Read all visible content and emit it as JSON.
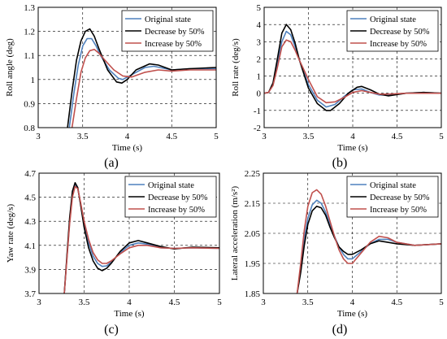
{
  "colors": {
    "original": "#4f81bd",
    "decrease": "#000000",
    "increase": "#c0504d",
    "grid": "#000000",
    "axis": "#000000"
  },
  "legend_position": "top-right",
  "chart_data": [
    {
      "type": "line",
      "panel_label": "(a)",
      "xlabel": "Time (s)",
      "ylabel": "Roll angle (deg)",
      "xlim": [
        3,
        5
      ],
      "ylim": [
        0.8,
        1.3
      ],
      "xticks": [
        "3",
        "3.5",
        "4",
        "4.5",
        "5"
      ],
      "yticks": [
        "0.8",
        "0.9",
        "1",
        "1.1",
        "1.2",
        "1.3"
      ],
      "grid": true,
      "series": [
        {
          "name": "Original state",
          "color": "#4f81bd",
          "x": [
            3.35,
            3.4,
            3.45,
            3.5,
            3.55,
            3.6,
            3.65,
            3.7,
            3.8,
            3.9,
            3.95,
            4.05,
            4.2,
            4.3,
            4.5,
            4.7,
            5.0
          ],
          "y": [
            0.8,
            0.94,
            1.06,
            1.14,
            1.17,
            1.17,
            1.14,
            1.1,
            1.04,
            1.005,
            1.0,
            1.02,
            1.05,
            1.055,
            1.04,
            1.045,
            1.045
          ]
        },
        {
          "name": "Decrease by 50%",
          "color": "#000000",
          "x": [
            3.33,
            3.38,
            3.43,
            3.48,
            3.53,
            3.58,
            3.63,
            3.68,
            3.78,
            3.88,
            3.94,
            4.0,
            4.1,
            4.25,
            4.35,
            4.5,
            4.7,
            5.0
          ],
          "y": [
            0.8,
            0.95,
            1.08,
            1.16,
            1.2,
            1.21,
            1.18,
            1.13,
            1.04,
            0.99,
            0.985,
            1.0,
            1.04,
            1.065,
            1.06,
            1.04,
            1.045,
            1.05
          ]
        },
        {
          "name": "Increase by 50%",
          "color": "#c0504d",
          "x": [
            3.38,
            3.43,
            3.48,
            3.53,
            3.58,
            3.63,
            3.68,
            3.75,
            3.85,
            3.95,
            4.05,
            4.2,
            4.35,
            4.5,
            4.7,
            5.0
          ],
          "y": [
            0.8,
            0.92,
            1.03,
            1.09,
            1.12,
            1.125,
            1.11,
            1.08,
            1.04,
            1.015,
            1.01,
            1.03,
            1.04,
            1.035,
            1.04,
            1.04
          ]
        }
      ]
    },
    {
      "type": "line",
      "panel_label": "(b)",
      "xlabel": "Time (s)",
      "ylabel": "Roll rate (deg/s)",
      "xlim": [
        3,
        5
      ],
      "ylim": [
        -2,
        5
      ],
      "xticks": [
        "3",
        "3.5",
        "4",
        "4.5",
        "5"
      ],
      "yticks": [
        "-2",
        "-1",
        "0",
        "1",
        "2",
        "3",
        "4",
        "5"
      ],
      "grid": true,
      "series": [
        {
          "name": "Original state",
          "color": "#4f81bd",
          "x": [
            3.0,
            3.05,
            3.1,
            3.15,
            3.2,
            3.25,
            3.3,
            3.35,
            3.4,
            3.5,
            3.6,
            3.7,
            3.8,
            3.9,
            4.0,
            4.1,
            4.2,
            4.3,
            4.4,
            4.6,
            4.8,
            5.0
          ],
          "y": [
            0,
            0.05,
            0.5,
            1.7,
            3.0,
            3.6,
            3.4,
            2.7,
            1.9,
            0.5,
            -0.4,
            -0.8,
            -0.65,
            -0.2,
            0.2,
            0.25,
            0.05,
            -0.1,
            -0.1,
            0,
            0.05,
            0
          ]
        },
        {
          "name": "Decrease by 50%",
          "color": "#000000",
          "x": [
            3.0,
            3.05,
            3.1,
            3.15,
            3.2,
            3.25,
            3.3,
            3.35,
            3.4,
            3.5,
            3.6,
            3.7,
            3.75,
            3.85,
            3.95,
            4.05,
            4.1,
            4.2,
            4.3,
            4.4,
            4.6,
            4.8,
            5.0
          ],
          "y": [
            0,
            0.05,
            0.6,
            2.0,
            3.5,
            4.0,
            3.7,
            2.9,
            1.9,
            0.3,
            -0.6,
            -1.0,
            -1.0,
            -0.6,
            0,
            0.35,
            0.4,
            0.2,
            -0.05,
            -0.15,
            0,
            0.05,
            0
          ]
        },
        {
          "name": "Increase by 50%",
          "color": "#c0504d",
          "x": [
            3.0,
            3.05,
            3.1,
            3.15,
            3.2,
            3.25,
            3.3,
            3.35,
            3.4,
            3.5,
            3.6,
            3.7,
            3.8,
            3.9,
            4.0,
            4.1,
            4.2,
            4.3,
            4.4,
            4.6,
            4.8,
            5.0
          ],
          "y": [
            0,
            0.05,
            0.45,
            1.5,
            2.7,
            3.1,
            3.0,
            2.5,
            1.9,
            0.8,
            -0.2,
            -0.55,
            -0.5,
            -0.25,
            0.05,
            0.15,
            0.05,
            -0.05,
            -0.05,
            0,
            0,
            0
          ]
        }
      ]
    },
    {
      "type": "line",
      "panel_label": "(c)",
      "xlabel": "Time (s)",
      "ylabel": "Yaw rate (deg/s)",
      "xlim": [
        3,
        5
      ],
      "ylim": [
        3.7,
        4.7
      ],
      "xticks": [
        "3",
        "3.5",
        "4",
        "4.5",
        "5"
      ],
      "yticks": [
        "3.7",
        "3.9",
        "4.1",
        "4.3",
        "4.5",
        "4.7"
      ],
      "grid": true,
      "series": [
        {
          "name": "Original state",
          "color": "#4f81bd",
          "x": [
            3.28,
            3.31,
            3.34,
            3.37,
            3.4,
            3.43,
            3.46,
            3.5,
            3.55,
            3.6,
            3.65,
            3.7,
            3.75,
            3.8,
            3.9,
            4.0,
            4.1,
            4.2,
            4.35,
            4.5,
            4.7,
            5.0
          ],
          "y": [
            3.7,
            4.0,
            4.3,
            4.52,
            4.6,
            4.57,
            4.45,
            4.27,
            4.12,
            4.01,
            3.95,
            3.925,
            3.93,
            3.96,
            4.04,
            4.1,
            4.12,
            4.11,
            4.08,
            4.075,
            4.08,
            4.075
          ]
        },
        {
          "name": "Decrease by 50%",
          "color": "#000000",
          "x": [
            3.28,
            3.31,
            3.34,
            3.37,
            3.4,
            3.43,
            3.46,
            3.5,
            3.55,
            3.6,
            3.65,
            3.7,
            3.75,
            3.8,
            3.9,
            4.0,
            4.1,
            4.2,
            4.35,
            4.5,
            4.7,
            5.0
          ],
          "y": [
            3.7,
            4.02,
            4.33,
            4.55,
            4.62,
            4.58,
            4.44,
            4.25,
            4.08,
            3.97,
            3.91,
            3.89,
            3.91,
            3.95,
            4.05,
            4.12,
            4.14,
            4.12,
            4.09,
            4.07,
            4.085,
            4.08
          ]
        },
        {
          "name": "Increase by 50%",
          "color": "#c0504d",
          "x": [
            3.28,
            3.31,
            3.34,
            3.37,
            3.4,
            3.43,
            3.46,
            3.5,
            3.55,
            3.6,
            3.65,
            3.7,
            3.75,
            3.8,
            3.9,
            4.0,
            4.1,
            4.2,
            4.35,
            4.5,
            4.7,
            5.0
          ],
          "y": [
            3.7,
            3.99,
            4.28,
            4.5,
            4.59,
            4.57,
            4.46,
            4.3,
            4.15,
            4.04,
            3.98,
            3.95,
            3.95,
            3.97,
            4.03,
            4.08,
            4.1,
            4.1,
            4.08,
            4.075,
            4.08,
            4.075
          ]
        }
      ]
    },
    {
      "type": "line",
      "panel_label": "(d)",
      "xlabel": "Time (s)",
      "ylabel": "Lateral acceleration (m/s²)",
      "xlim": [
        3,
        5
      ],
      "ylim": [
        1.85,
        2.25
      ],
      "xticks": [
        "3",
        "3.5",
        "4",
        "4.5",
        "5"
      ],
      "yticks": [
        "1.85",
        "1.95",
        "2.05",
        "2.15",
        "2.25"
      ],
      "grid": true,
      "series": [
        {
          "name": "Original state",
          "color": "#4f81bd",
          "x": [
            3.38,
            3.42,
            3.46,
            3.5,
            3.55,
            3.6,
            3.65,
            3.7,
            3.75,
            3.8,
            3.85,
            3.9,
            3.95,
            4.0,
            4.1,
            4.2,
            4.3,
            4.4,
            4.5,
            4.7,
            5.0
          ],
          "y": [
            1.85,
            1.93,
            2.03,
            2.1,
            2.145,
            2.16,
            2.15,
            2.12,
            2.08,
            2.04,
            2.005,
            1.98,
            1.965,
            1.965,
            1.99,
            2.015,
            2.03,
            2.03,
            2.02,
            2.01,
            2.015
          ]
        },
        {
          "name": "Decrease by 50%",
          "color": "#000000",
          "x": [
            3.38,
            3.42,
            3.46,
            3.5,
            3.55,
            3.6,
            3.65,
            3.7,
            3.75,
            3.8,
            3.85,
            3.9,
            3.95,
            4.0,
            4.1,
            4.2,
            4.3,
            4.4,
            4.5,
            4.7,
            5.0
          ],
          "y": [
            1.85,
            1.92,
            2.01,
            2.08,
            2.125,
            2.14,
            2.135,
            2.11,
            2.07,
            2.035,
            2.005,
            1.99,
            1.98,
            1.98,
            1.995,
            2.015,
            2.025,
            2.02,
            2.015,
            2.01,
            2.015
          ]
        },
        {
          "name": "Increase by 50%",
          "color": "#c0504d",
          "x": [
            3.38,
            3.42,
            3.46,
            3.5,
            3.55,
            3.6,
            3.65,
            3.7,
            3.75,
            3.8,
            3.85,
            3.9,
            3.95,
            4.0,
            4.1,
            4.2,
            4.3,
            4.4,
            4.5,
            4.7,
            5.0
          ],
          "y": [
            1.85,
            1.95,
            2.06,
            2.14,
            2.185,
            2.195,
            2.18,
            2.14,
            2.09,
            2.04,
            1.995,
            1.965,
            1.95,
            1.95,
            1.985,
            2.02,
            2.04,
            2.035,
            2.02,
            2.01,
            2.015
          ]
        }
      ]
    }
  ]
}
